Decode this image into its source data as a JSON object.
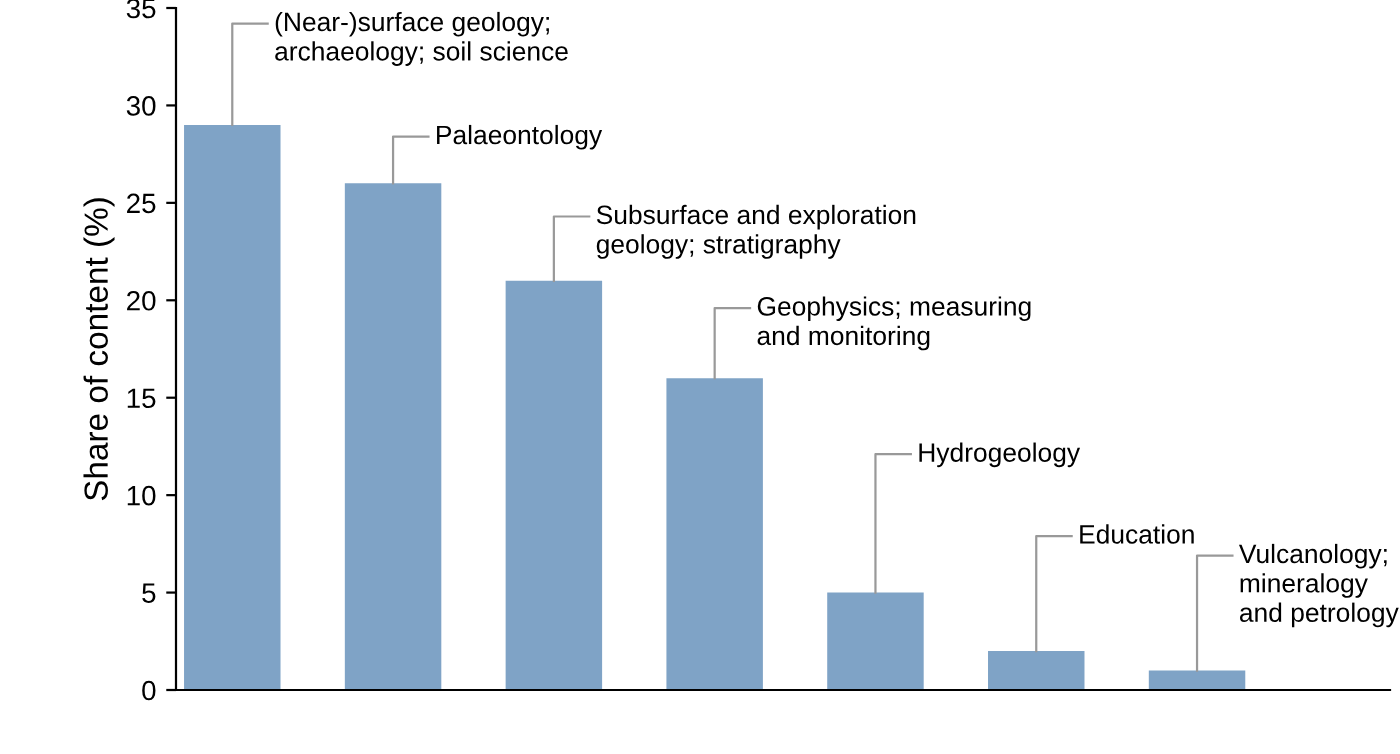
{
  "chart_data": {
    "type": "bar",
    "ylabel": "Share of content (%)",
    "categories": [
      null,
      null,
      null,
      null,
      null,
      null,
      null
    ],
    "values": [
      29,
      26,
      21,
      16,
      5,
      2,
      1
    ],
    "color": "#7fa3c6",
    "ylim": [
      0,
      35
    ],
    "yticks": [
      0,
      5,
      10,
      15,
      20,
      25,
      30,
      35
    ],
    "grid": false,
    "annotations": [
      "(Near-)surface geology;\narchaeology; soil science",
      "Palaeontology",
      "Subsurface and exploration\ngeology; stratigraphy",
      "Geophysics; measuring\nand monitoring",
      "Hydrogeology",
      "Education",
      "Vulcanology;\nmineralogy\nand petrology"
    ]
  }
}
